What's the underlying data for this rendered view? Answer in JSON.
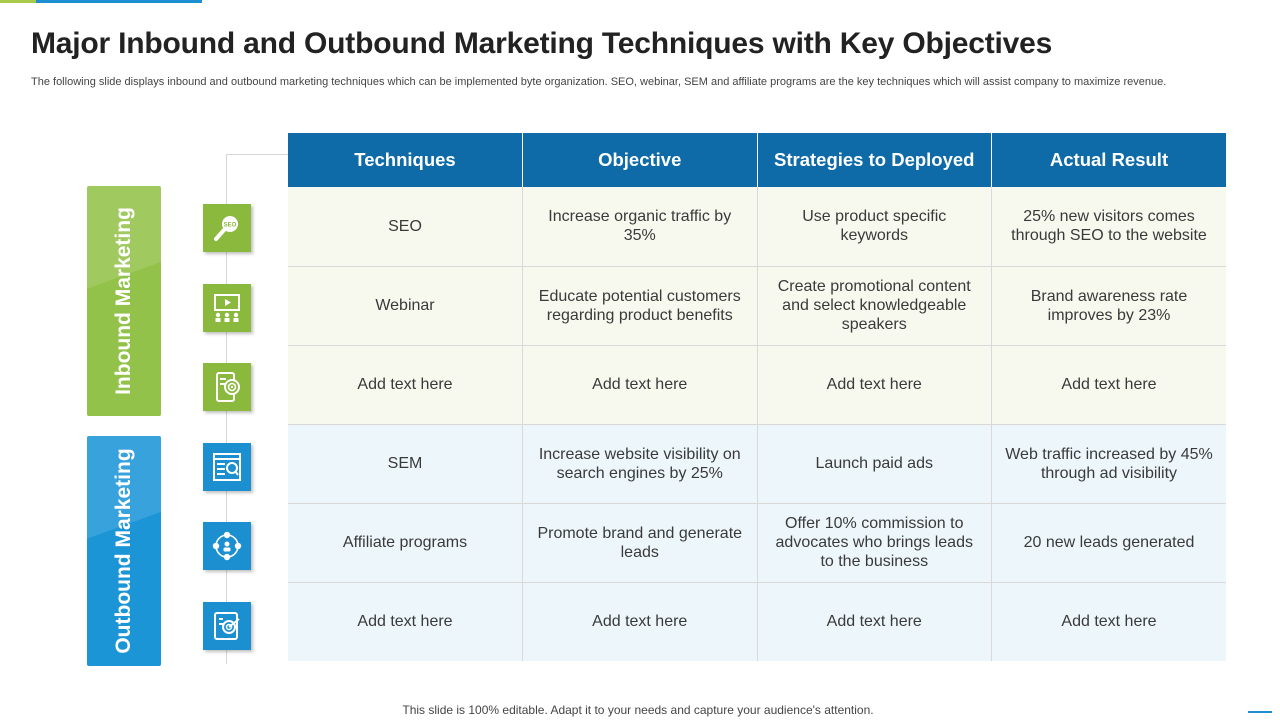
{
  "slide": {
    "title": "Major Inbound and Outbound Marketing Techniques with Key Objectives",
    "subtitle": "The following slide displays inbound and outbound marketing techniques which can be implemented byte organization. SEO, webinar, SEM and affiliate programs are the key techniques which will assist company to maximize revenue.",
    "footer": "This slide is 100% editable. Adapt it to your needs and capture your audience's attention."
  },
  "bands": {
    "inbound": "Inbound Marketing",
    "outbound": "Outbound Marketing"
  },
  "icons": [
    "seo-magnifier-icon",
    "webinar-presentation-icon",
    "mobile-target-icon",
    "sem-browser-search-icon",
    "affiliate-network-icon",
    "tablet-target-icon"
  ],
  "colors": {
    "inbound_green": "#93c24a",
    "outbound_blue": "#1b95d6",
    "header_blue": "#0e6ba8"
  },
  "table": {
    "headers": [
      "Techniques",
      "Objective",
      "Strategies to Deployed",
      "Actual Result"
    ],
    "rows": [
      [
        "SEO",
        "Increase organic traffic by 35%",
        "Use product specific keywords",
        "25% new visitors comes through SEO to the website"
      ],
      [
        "Webinar",
        "Educate potential customers regarding product benefits",
        "Create promotional content and select knowledgeable speakers",
        "Brand awareness rate improves by 23%"
      ],
      [
        "Add text here",
        "Add text here",
        "Add text here",
        "Add text here"
      ],
      [
        "SEM",
        "Increase website visibility on search engines by 25%",
        "Launch paid ads",
        "Web traffic increased by 45% through ad visibility"
      ],
      [
        "Affiliate programs",
        "Promote brand and generate leads",
        "Offer 10% commission to advocates who brings leads to the business",
        "20 new leads generated"
      ],
      [
        "Add text here",
        "Add text here",
        "Add text here",
        "Add text here"
      ]
    ]
  }
}
